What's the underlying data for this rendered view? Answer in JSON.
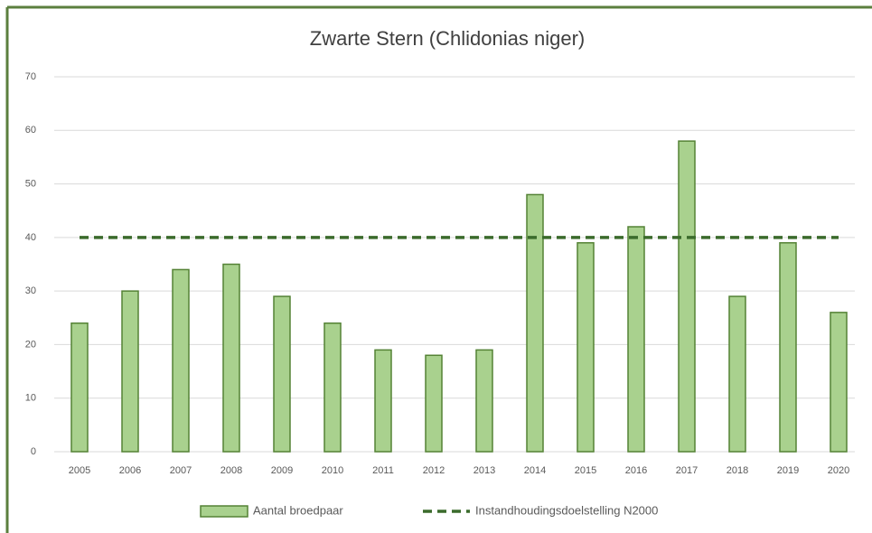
{
  "chart_data": {
    "type": "bar",
    "title": "Zwarte Stern (Chlidonias niger)",
    "categories": [
      "2005",
      "2006",
      "2007",
      "2008",
      "2009",
      "2010",
      "2011",
      "2012",
      "2013",
      "2014",
      "2015",
      "2016",
      "2017",
      "2018",
      "2019",
      "2020"
    ],
    "series": [
      {
        "name": "Aantal broedpaar",
        "type": "bar",
        "color": "#a9d18e",
        "values": [
          24,
          30,
          34,
          35,
          29,
          24,
          19,
          18,
          19,
          48,
          39,
          42,
          58,
          29,
          39,
          26
        ]
      },
      {
        "name": "Instandhoudingsdoelstelling N2000",
        "type": "line",
        "dashed": true,
        "color": "#3b6b2c",
        "values": [
          40,
          40,
          40,
          40,
          40,
          40,
          40,
          40,
          40,
          40,
          40,
          40,
          40,
          40,
          40,
          40
        ]
      }
    ],
    "ylim": [
      0,
      70
    ],
    "yticks": [
      0,
      10,
      20,
      30,
      40,
      50,
      60,
      70
    ],
    "grid": true,
    "legend": "bottom"
  }
}
